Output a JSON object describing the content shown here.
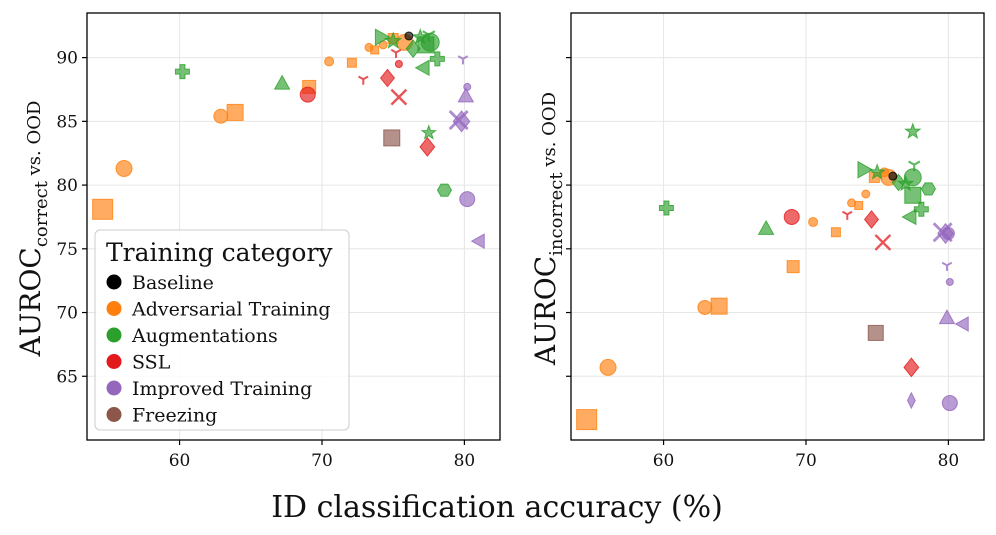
{
  "chart_data": [
    {
      "type": "scatter",
      "panel": "left",
      "ylabel": {
        "main": "AUROC",
        "sub": "correct",
        "rest": " vs. OOD"
      },
      "xlim": [
        53.5,
        82.5
      ],
      "ylim": [
        60,
        93.5
      ],
      "xticks": [
        "60",
        "70",
        "80"
      ],
      "yticks": [
        "65",
        "70",
        "75",
        "80",
        "85",
        "90"
      ],
      "points": [
        {
          "x": 76.1,
          "y": 91.7,
          "cat": "Baseline",
          "m": "circle",
          "s": 8
        },
        {
          "x": 54.6,
          "y": 78.1,
          "cat": "Adversarial Training",
          "m": "square",
          "s": 20
        },
        {
          "x": 56.1,
          "y": 81.3,
          "cat": "Adversarial Training",
          "m": "circle",
          "s": 16
        },
        {
          "x": 62.9,
          "y": 85.4,
          "cat": "Adversarial Training",
          "m": "circle",
          "s": 14
        },
        {
          "x": 63.9,
          "y": 85.7,
          "cat": "Adversarial Training",
          "m": "square",
          "s": 16
        },
        {
          "x": 69.1,
          "y": 87.7,
          "cat": "Adversarial Training",
          "m": "square",
          "s": 13
        },
        {
          "x": 70.5,
          "y": 89.7,
          "cat": "Adversarial Training",
          "m": "circle",
          "s": 9
        },
        {
          "x": 72.1,
          "y": 89.6,
          "cat": "Adversarial Training",
          "m": "square",
          "s": 9
        },
        {
          "x": 73.3,
          "y": 90.8,
          "cat": "Adversarial Training",
          "m": "circle",
          "s": 8
        },
        {
          "x": 73.7,
          "y": 90.6,
          "cat": "Adversarial Training",
          "m": "square",
          "s": 8
        },
        {
          "x": 74.3,
          "y": 91.0,
          "cat": "Adversarial Training",
          "m": "circle",
          "s": 8
        },
        {
          "x": 75.0,
          "y": 91.5,
          "cat": "Adversarial Training",
          "m": "square",
          "s": 10
        },
        {
          "x": 75.8,
          "y": 91.2,
          "cat": "Adversarial Training",
          "m": "circle",
          "s": 16
        },
        {
          "x": 60.2,
          "y": 88.9,
          "cat": "Augmentations",
          "m": "plus",
          "s": 14
        },
        {
          "x": 67.2,
          "y": 88.0,
          "cat": "Augmentations",
          "m": "triangle",
          "s": 15
        },
        {
          "x": 74.2,
          "y": 91.6,
          "cat": "Augmentations",
          "m": "triangle-right",
          "s": 16
        },
        {
          "x": 75.0,
          "y": 91.3,
          "cat": "Augmentations",
          "m": "star",
          "s": 15
        },
        {
          "x": 76.4,
          "y": 90.7,
          "cat": "Augmentations",
          "m": "diamond",
          "s": 15
        },
        {
          "x": 76.9,
          "y": 91.6,
          "cat": "Augmentations",
          "m": "star",
          "s": 14
        },
        {
          "x": 77.3,
          "y": 91.0,
          "cat": "Augmentations",
          "m": "square",
          "s": 16
        },
        {
          "x": 77.6,
          "y": 91.2,
          "cat": "Augmentations",
          "m": "circle",
          "s": 18
        },
        {
          "x": 77.1,
          "y": 89.2,
          "cat": "Augmentations",
          "m": "triangle-left",
          "s": 15
        },
        {
          "x": 78.1,
          "y": 89.9,
          "cat": "Augmentations",
          "m": "plus",
          "s": 14
        },
        {
          "x": 77.5,
          "y": 91.8,
          "cat": "Augmentations",
          "m": "tri-down",
          "s": 14
        },
        {
          "x": 77.5,
          "y": 84.1,
          "cat": "Augmentations",
          "m": "star",
          "s": 13
        },
        {
          "x": 78.6,
          "y": 79.6,
          "cat": "Augmentations",
          "m": "hexagon",
          "s": 14
        },
        {
          "x": 69.0,
          "y": 87.1,
          "cat": "SSL",
          "m": "circle",
          "s": 15
        },
        {
          "x": 72.9,
          "y": 88.3,
          "cat": "SSL",
          "m": "tri-down",
          "s": 11
        },
        {
          "x": 74.6,
          "y": 88.4,
          "cat": "SSL",
          "m": "diamond",
          "s": 15
        },
        {
          "x": 75.4,
          "y": 86.9,
          "cat": "SSL",
          "m": "x",
          "s": 15
        },
        {
          "x": 75.4,
          "y": 89.5,
          "cat": "SSL",
          "m": "circle",
          "s": 7
        },
        {
          "x": 75.2,
          "y": 90.4,
          "cat": "SSL",
          "m": "tri-down",
          "s": 11
        },
        {
          "x": 77.4,
          "y": 83.0,
          "cat": "SSL",
          "m": "diamond",
          "s": 16
        },
        {
          "x": 79.8,
          "y": 85.0,
          "cat": "Improved Training",
          "m": "diamond",
          "s": 18
        },
        {
          "x": 79.6,
          "y": 85.1,
          "cat": "Improved Training",
          "m": "x",
          "s": 18
        },
        {
          "x": 80.1,
          "y": 87.0,
          "cat": "Improved Training",
          "m": "triangle",
          "s": 15
        },
        {
          "x": 80.2,
          "y": 87.7,
          "cat": "Improved Training",
          "m": "circle",
          "s": 7
        },
        {
          "x": 79.9,
          "y": 89.9,
          "cat": "Improved Training",
          "m": "tri-down",
          "s": 11
        },
        {
          "x": 80.2,
          "y": 78.9,
          "cat": "Improved Training",
          "m": "circle",
          "s": 15
        },
        {
          "x": 81.0,
          "y": 75.6,
          "cat": "Improved Training",
          "m": "triangle-left",
          "s": 14
        },
        {
          "x": 74.9,
          "y": 83.7,
          "cat": "Freezing",
          "m": "square",
          "s": 16
        }
      ]
    },
    {
      "type": "scatter",
      "panel": "right",
      "ylabel": {
        "main": "AUROC",
        "sub": "incorrect",
        "rest": " vs. OOD"
      },
      "xlim": [
        53.5,
        82.5
      ],
      "ylim": [
        60,
        93.5
      ],
      "xticks": [
        "60",
        "70",
        "80"
      ],
      "yticks": [],
      "points": [
        {
          "x": 76.1,
          "y": 80.7,
          "cat": "Baseline",
          "m": "circle",
          "s": 8
        },
        {
          "x": 54.6,
          "y": 61.6,
          "cat": "Adversarial Training",
          "m": "square",
          "s": 20
        },
        {
          "x": 56.1,
          "y": 65.7,
          "cat": "Adversarial Training",
          "m": "circle",
          "s": 16
        },
        {
          "x": 62.9,
          "y": 70.4,
          "cat": "Adversarial Training",
          "m": "circle",
          "s": 14
        },
        {
          "x": 63.9,
          "y": 70.5,
          "cat": "Adversarial Training",
          "m": "square",
          "s": 16
        },
        {
          "x": 69.1,
          "y": 73.6,
          "cat": "Adversarial Training",
          "m": "square",
          "s": 12
        },
        {
          "x": 70.5,
          "y": 77.1,
          "cat": "Adversarial Training",
          "m": "circle",
          "s": 9
        },
        {
          "x": 72.1,
          "y": 76.3,
          "cat": "Adversarial Training",
          "m": "square",
          "s": 9
        },
        {
          "x": 73.2,
          "y": 78.6,
          "cat": "Adversarial Training",
          "m": "circle",
          "s": 8
        },
        {
          "x": 73.7,
          "y": 78.4,
          "cat": "Adversarial Training",
          "m": "square",
          "s": 8
        },
        {
          "x": 74.2,
          "y": 79.3,
          "cat": "Adversarial Training",
          "m": "circle",
          "s": 8
        },
        {
          "x": 74.8,
          "y": 80.6,
          "cat": "Adversarial Training",
          "m": "square",
          "s": 10
        },
        {
          "x": 75.8,
          "y": 80.6,
          "cat": "Adversarial Training",
          "m": "circle",
          "s": 16
        },
        {
          "x": 75.5,
          "y": 81.0,
          "cat": "Adversarial Training",
          "m": "circle",
          "s": 9
        },
        {
          "x": 60.2,
          "y": 78.2,
          "cat": "Augmentations",
          "m": "plus",
          "s": 14
        },
        {
          "x": 67.2,
          "y": 76.6,
          "cat": "Augmentations",
          "m": "triangle",
          "s": 15
        },
        {
          "x": 74.1,
          "y": 81.2,
          "cat": "Augmentations",
          "m": "triangle-right",
          "s": 16
        },
        {
          "x": 75.0,
          "y": 81.0,
          "cat": "Augmentations",
          "m": "star",
          "s": 14
        },
        {
          "x": 76.5,
          "y": 80.2,
          "cat": "Augmentations",
          "m": "diamond",
          "s": 14
        },
        {
          "x": 77.0,
          "y": 80.1,
          "cat": "Augmentations",
          "m": "star",
          "s": 14
        },
        {
          "x": 77.5,
          "y": 79.2,
          "cat": "Augmentations",
          "m": "square",
          "s": 16
        },
        {
          "x": 77.5,
          "y": 80.6,
          "cat": "Augmentations",
          "m": "circle",
          "s": 17
        },
        {
          "x": 77.6,
          "y": 81.6,
          "cat": "Augmentations",
          "m": "tri-down",
          "s": 13
        },
        {
          "x": 77.3,
          "y": 77.5,
          "cat": "Augmentations",
          "m": "triangle-left",
          "s": 15
        },
        {
          "x": 78.1,
          "y": 78.1,
          "cat": "Augmentations",
          "m": "plus",
          "s": 14
        },
        {
          "x": 77.5,
          "y": 84.2,
          "cat": "Augmentations",
          "m": "star",
          "s": 14
        },
        {
          "x": 78.6,
          "y": 79.7,
          "cat": "Augmentations",
          "m": "hexagon",
          "s": 14
        },
        {
          "x": 69.0,
          "y": 77.5,
          "cat": "SSL",
          "m": "circle",
          "s": 15
        },
        {
          "x": 72.9,
          "y": 77.7,
          "cat": "SSL",
          "m": "tri-down",
          "s": 11
        },
        {
          "x": 74.6,
          "y": 77.3,
          "cat": "SSL",
          "m": "diamond",
          "s": 15
        },
        {
          "x": 75.4,
          "y": 75.5,
          "cat": "SSL",
          "m": "x",
          "s": 15
        },
        {
          "x": 77.4,
          "y": 65.7,
          "cat": "SSL",
          "m": "diamond",
          "s": 16
        },
        {
          "x": 79.6,
          "y": 76.3,
          "cat": "Improved Training",
          "m": "x",
          "s": 18
        },
        {
          "x": 79.8,
          "y": 76.2,
          "cat": "Improved Training",
          "m": "diamond",
          "s": 17
        },
        {
          "x": 80.0,
          "y": 76.2,
          "cat": "Improved Training",
          "m": "circle",
          "s": 12
        },
        {
          "x": 79.9,
          "y": 73.7,
          "cat": "Improved Training",
          "m": "tri-down",
          "s": 11
        },
        {
          "x": 80.1,
          "y": 72.4,
          "cat": "Improved Training",
          "m": "circle",
          "s": 7
        },
        {
          "x": 79.9,
          "y": 69.6,
          "cat": "Improved Training",
          "m": "triangle",
          "s": 15
        },
        {
          "x": 81.0,
          "y": 69.1,
          "cat": "Improved Training",
          "m": "triangle-left",
          "s": 14
        },
        {
          "x": 77.4,
          "y": 63.1,
          "cat": "Improved Training",
          "m": "diamond-thin",
          "s": 14
        },
        {
          "x": 80.1,
          "y": 62.9,
          "cat": "Improved Training",
          "m": "circle",
          "s": 15
        },
        {
          "x": 74.9,
          "y": 68.4,
          "cat": "Freezing",
          "m": "square",
          "s": 15
        }
      ]
    }
  ],
  "xlabel": "ID classification accuracy (%)",
  "legend": {
    "title": "Training category",
    "entries": [
      {
        "label": "Baseline",
        "color": "#000000"
      },
      {
        "label": "Adversarial Training",
        "color": "#ff7f0e"
      },
      {
        "label": "Augmentations",
        "color": "#2ca02c"
      },
      {
        "label": "SSL",
        "color": "#e31a1c"
      },
      {
        "label": "Improved Training",
        "color": "#9467bd"
      },
      {
        "label": "Freezing",
        "color": "#8c564b"
      }
    ]
  },
  "colors": {
    "Baseline": "#000000",
    "Adversarial Training": "#ff7f0e",
    "Augmentations": "#2ca02c",
    "SSL": "#e31a1c",
    "Improved Training": "#9467bd",
    "Freezing": "#8c564b"
  }
}
